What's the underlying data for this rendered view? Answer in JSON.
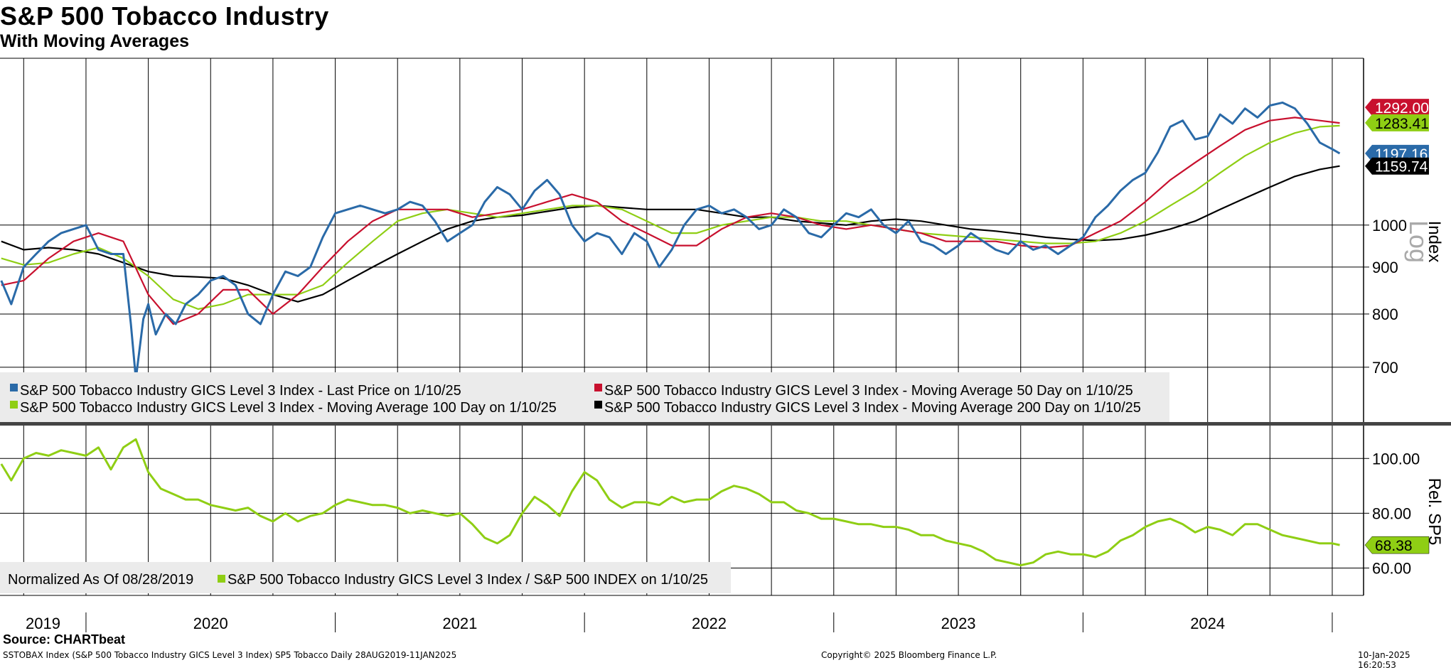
{
  "title": "S&P 500 Tobacco Industry",
  "subtitle": "With Moving Averages",
  "colors": {
    "price": "#2a6aa8",
    "ma50": "#c8102e",
    "ma100": "#8fce14",
    "ma200": "#000000",
    "rel": "#8fce14"
  },
  "chart_data": [
    {
      "type": "line",
      "panel": "upper",
      "y_scale": "log",
      "ylim": [
        610,
        1520
      ],
      "yticks": [
        700,
        800,
        900,
        1000
      ],
      "ytick_labels": [
        "700",
        "800",
        "900",
        "1000"
      ],
      "ylabel": "Index",
      "scale_label": "Log",
      "x_range": [
        "2019-08-28",
        "2025-01-11"
      ],
      "series": [
        {
          "name": "S&P 500 Tobacco Industry GICS Level 3 Index - Last Price on 1/10/25",
          "color_key": "price",
          "last_value": "1197.16",
          "x": [
            2019.66,
            2019.7,
            2019.75,
            2019.8,
            2019.85,
            2019.9,
            2019.95,
            2020.0,
            2020.05,
            2020.1,
            2020.15,
            2020.18,
            2020.2,
            2020.23,
            2020.25,
            2020.28,
            2020.32,
            2020.36,
            2020.4,
            2020.45,
            2020.5,
            2020.55,
            2020.6,
            2020.65,
            2020.7,
            2020.75,
            2020.8,
            2020.85,
            2020.9,
            2020.95,
            2021.0,
            2021.05,
            2021.1,
            2021.15,
            2021.2,
            2021.25,
            2021.3,
            2021.35,
            2021.4,
            2021.45,
            2021.5,
            2021.55,
            2021.6,
            2021.65,
            2021.7,
            2021.75,
            2021.8,
            2021.85,
            2021.9,
            2021.95,
            2022.0,
            2022.05,
            2022.1,
            2022.15,
            2022.2,
            2022.25,
            2022.3,
            2022.35,
            2022.4,
            2022.45,
            2022.5,
            2022.55,
            2022.6,
            2022.65,
            2022.7,
            2022.75,
            2022.8,
            2022.85,
            2022.9,
            2022.95,
            2023.0,
            2023.05,
            2023.1,
            2023.15,
            2023.2,
            2023.25,
            2023.3,
            2023.35,
            2023.4,
            2023.45,
            2023.5,
            2023.55,
            2023.6,
            2023.65,
            2023.7,
            2023.75,
            2023.8,
            2023.85,
            2023.9,
            2023.95,
            2024.0,
            2024.05,
            2024.1,
            2024.15,
            2024.2,
            2024.25,
            2024.3,
            2024.35,
            2024.4,
            2024.45,
            2024.5,
            2024.55,
            2024.6,
            2024.65,
            2024.7,
            2024.75,
            2024.8,
            2024.85,
            2024.9,
            2024.95,
            2025.0,
            2025.03
          ],
          "values": [
            870,
            820,
            900,
            930,
            960,
            980,
            990,
            1000,
            940,
            930,
            930,
            780,
            680,
            790,
            820,
            760,
            800,
            780,
            820,
            840,
            870,
            880,
            860,
            800,
            780,
            840,
            890,
            880,
            900,
            970,
            1030,
            1040,
            1050,
            1040,
            1030,
            1040,
            1060,
            1050,
            1010,
            960,
            980,
            1000,
            1060,
            1100,
            1080,
            1040,
            1090,
            1120,
            1080,
            1000,
            960,
            980,
            970,
            930,
            980,
            960,
            900,
            940,
            1000,
            1040,
            1050,
            1030,
            1040,
            1020,
            990,
            1000,
            1040,
            1020,
            980,
            970,
            1000,
            1030,
            1020,
            1040,
            1000,
            980,
            1010,
            960,
            950,
            930,
            950,
            980,
            960,
            940,
            930,
            960,
            940,
            950,
            930,
            950,
            970,
            1020,
            1050,
            1090,
            1120,
            1140,
            1200,
            1280,
            1300,
            1240,
            1250,
            1320,
            1290,
            1340,
            1310,
            1350,
            1360,
            1340,
            1290,
            1230,
            1210,
            1197.16
          ]
        },
        {
          "name": "S&P 500 Tobacco Industry GICS Level 3 Index - Moving Average 50 Day on 1/10/25",
          "color_key": "ma50",
          "last_value": "1292.00",
          "x": [
            2019.66,
            2019.75,
            2019.85,
            2019.95,
            2020.05,
            2020.15,
            2020.25,
            2020.35,
            2020.45,
            2020.55,
            2020.65,
            2020.75,
            2020.85,
            2020.95,
            2021.05,
            2021.15,
            2021.25,
            2021.35,
            2021.45,
            2021.55,
            2021.65,
            2021.75,
            2021.85,
            2021.95,
            2022.05,
            2022.15,
            2022.25,
            2022.35,
            2022.45,
            2022.55,
            2022.65,
            2022.75,
            2022.85,
            2022.95,
            2023.05,
            2023.15,
            2023.25,
            2023.35,
            2023.45,
            2023.55,
            2023.65,
            2023.75,
            2023.85,
            2023.95,
            2024.05,
            2024.15,
            2024.25,
            2024.35,
            2024.45,
            2024.55,
            2024.65,
            2024.75,
            2024.85,
            2024.95,
            2025.03
          ],
          "values": [
            860,
            870,
            920,
            960,
            980,
            960,
            840,
            780,
            800,
            850,
            850,
            800,
            840,
            900,
            960,
            1010,
            1040,
            1040,
            1040,
            1020,
            1030,
            1040,
            1060,
            1080,
            1060,
            1010,
            980,
            950,
            950,
            990,
            1020,
            1030,
            1020,
            1000,
            990,
            1000,
            990,
            980,
            960,
            960,
            960,
            950,
            945,
            950,
            980,
            1010,
            1060,
            1120,
            1170,
            1220,
            1270,
            1300,
            1310,
            1300,
            1292
          ]
        },
        {
          "name": "S&P 500 Tobacco Industry GICS Level 3 Index - Moving Average 100 Day on 1/10/25",
          "color_key": "ma100",
          "last_value": "1283.41",
          "x": [
            2019.66,
            2019.75,
            2019.85,
            2019.95,
            2020.05,
            2020.15,
            2020.25,
            2020.35,
            2020.45,
            2020.55,
            2020.65,
            2020.75,
            2020.85,
            2020.95,
            2021.05,
            2021.15,
            2021.25,
            2021.35,
            2021.45,
            2021.55,
            2021.65,
            2021.75,
            2021.85,
            2021.95,
            2022.05,
            2022.15,
            2022.25,
            2022.35,
            2022.45,
            2022.55,
            2022.65,
            2022.75,
            2022.85,
            2022.95,
            2023.05,
            2023.15,
            2023.25,
            2023.35,
            2023.45,
            2023.55,
            2023.65,
            2023.75,
            2023.85,
            2023.95,
            2024.05,
            2024.15,
            2024.25,
            2024.35,
            2024.45,
            2024.55,
            2024.65,
            2024.75,
            2024.85,
            2024.95,
            2025.03
          ],
          "values": [
            920,
            905,
            910,
            930,
            945,
            920,
            880,
            830,
            810,
            820,
            840,
            840,
            840,
            860,
            910,
            960,
            1010,
            1030,
            1040,
            1030,
            1020,
            1030,
            1040,
            1050,
            1050,
            1040,
            1010,
            980,
            980,
            1000,
            1010,
            1020,
            1020,
            1010,
            1010,
            1000,
            990,
            980,
            975,
            970,
            965,
            960,
            955,
            955,
            960,
            980,
            1010,
            1050,
            1090,
            1140,
            1190,
            1230,
            1260,
            1280,
            1283.41
          ]
        },
        {
          "name": "S&P 500 Tobacco Industry GICS Level 3 Index - Moving Average 200 Day on 1/10/25",
          "color_key": "ma200",
          "last_value": "1159.74",
          "x": [
            2019.66,
            2019.75,
            2019.85,
            2019.95,
            2020.05,
            2020.15,
            2020.25,
            2020.35,
            2020.45,
            2020.55,
            2020.65,
            2020.75,
            2020.85,
            2020.95,
            2021.05,
            2021.15,
            2021.25,
            2021.35,
            2021.45,
            2021.55,
            2021.65,
            2021.75,
            2021.85,
            2021.95,
            2022.05,
            2022.15,
            2022.25,
            2022.35,
            2022.45,
            2022.55,
            2022.65,
            2022.75,
            2022.85,
            2022.95,
            2023.05,
            2023.15,
            2023.25,
            2023.35,
            2023.45,
            2023.55,
            2023.65,
            2023.75,
            2023.85,
            2023.95,
            2024.05,
            2024.15,
            2024.25,
            2024.35,
            2024.45,
            2024.55,
            2024.65,
            2024.75,
            2024.85,
            2024.95,
            2025.03
          ],
          "values": [
            960,
            940,
            945,
            940,
            930,
            910,
            890,
            880,
            878,
            875,
            860,
            840,
            825,
            840,
            870,
            900,
            930,
            960,
            990,
            1010,
            1020,
            1025,
            1035,
            1045,
            1050,
            1045,
            1040,
            1040,
            1040,
            1030,
            1020,
            1020,
            1010,
            1005,
            1000,
            1010,
            1015,
            1010,
            1000,
            990,
            985,
            978,
            970,
            965,
            962,
            965,
            975,
            990,
            1010,
            1040,
            1070,
            1100,
            1130,
            1150,
            1159.74
          ]
        }
      ],
      "legend": [
        {
          "label": "S&P 500 Tobacco Industry GICS Level 3 Index - Last Price on 1/10/25",
          "color_key": "price"
        },
        {
          "label": "S&P 500 Tobacco Industry GICS Level 3 Index - Moving Average 50 Day on 1/10/25",
          "color_key": "ma50"
        },
        {
          "label": "S&P 500 Tobacco Industry GICS Level 3 Index - Moving Average 100 Day on 1/10/25",
          "color_key": "ma100"
        },
        {
          "label": "S&P 500 Tobacco Industry GICS Level 3 Index - Moving Average 200 Day on 1/10/25",
          "color_key": "ma200"
        }
      ]
    },
    {
      "type": "line",
      "panel": "lower",
      "ylim": [
        50,
        112
      ],
      "yticks": [
        60,
        80,
        100
      ],
      "ytick_labels": [
        "60.00",
        "80.00",
        "100.00"
      ],
      "ylabel": "Rel. SP5",
      "series": [
        {
          "name": "S&P 500 Tobacco Industry GICS Level 3 Index / S&P 500 INDEX on 1/10/25",
          "color_key": "rel",
          "last_value": "68.38",
          "x": [
            2019.66,
            2019.7,
            2019.75,
            2019.8,
            2019.85,
            2019.9,
            2019.95,
            2020.0,
            2020.05,
            2020.1,
            2020.15,
            2020.2,
            2020.25,
            2020.3,
            2020.35,
            2020.4,
            2020.45,
            2020.5,
            2020.55,
            2020.6,
            2020.65,
            2020.7,
            2020.75,
            2020.8,
            2020.85,
            2020.9,
            2020.95,
            2021.0,
            2021.05,
            2021.1,
            2021.15,
            2021.2,
            2021.25,
            2021.3,
            2021.35,
            2021.4,
            2021.45,
            2021.5,
            2021.55,
            2021.6,
            2021.65,
            2021.7,
            2021.75,
            2021.8,
            2021.85,
            2021.9,
            2021.95,
            2022.0,
            2022.05,
            2022.1,
            2022.15,
            2022.2,
            2022.25,
            2022.3,
            2022.35,
            2022.4,
            2022.45,
            2022.5,
            2022.55,
            2022.6,
            2022.65,
            2022.7,
            2022.75,
            2022.8,
            2022.85,
            2022.9,
            2022.95,
            2023.0,
            2023.05,
            2023.1,
            2023.15,
            2023.2,
            2023.25,
            2023.3,
            2023.35,
            2023.4,
            2023.45,
            2023.5,
            2023.55,
            2023.6,
            2023.65,
            2023.7,
            2023.75,
            2023.8,
            2023.85,
            2023.9,
            2023.95,
            2024.0,
            2024.05,
            2024.1,
            2024.15,
            2024.2,
            2024.25,
            2024.3,
            2024.35,
            2024.4,
            2024.45,
            2024.5,
            2024.55,
            2024.6,
            2024.65,
            2024.7,
            2024.75,
            2024.8,
            2024.85,
            2024.9,
            2024.95,
            2025.0,
            2025.03
          ],
          "values": [
            98,
            92,
            100,
            102,
            101,
            103,
            102,
            101,
            104,
            96,
            104,
            107,
            95,
            89,
            87,
            85,
            85,
            83,
            82,
            81,
            82,
            79,
            77,
            80,
            77,
            79,
            80,
            83,
            85,
            84,
            83,
            83,
            82,
            80,
            81,
            80,
            79,
            80,
            76,
            71,
            69,
            72,
            80,
            86,
            83,
            79,
            88,
            95,
            92,
            85,
            82,
            84,
            84,
            83,
            86,
            84,
            85,
            85,
            88,
            90,
            89,
            87,
            84,
            84,
            81,
            80,
            78,
            78,
            77,
            76,
            76,
            75,
            75,
            74,
            72,
            72,
            70,
            69,
            68,
            66,
            63,
            62,
            61,
            62,
            65,
            66,
            65,
            65,
            64,
            66,
            70,
            72,
            75,
            77,
            78,
            76,
            73,
            75,
            74,
            72,
            76,
            76,
            74,
            72,
            71,
            70,
            69,
            69,
            68.38
          ]
        }
      ],
      "legend": [
        {
          "label": "Normalized As Of 08/28/2019",
          "color_key": ""
        },
        {
          "label": "S&P 500 Tobacco Industry GICS Level 3 Index / S&P 500 INDEX on 1/10/25",
          "color_key": "rel"
        }
      ]
    }
  ],
  "x_axis": {
    "years": [
      "2019",
      "2020",
      "2021",
      "2022",
      "2023",
      "2024"
    ]
  },
  "last_value_tags": {
    "ma50": "1292.00",
    "ma100": "1283.41",
    "price": "1197.16",
    "ma200": "1159.74",
    "rel": "68.38"
  },
  "footer": {
    "source": "Source: CHARTbeat",
    "left": "SSTOBAX Index (S&P 500 Tobacco Industry GICS Level 3 Index) SP5 Tobacco  Daily 28AUG2019-11JAN2025",
    "center": "Copyright© 2025 Bloomberg Finance L.P.",
    "right": "10-Jan-2025 16:20:53"
  }
}
